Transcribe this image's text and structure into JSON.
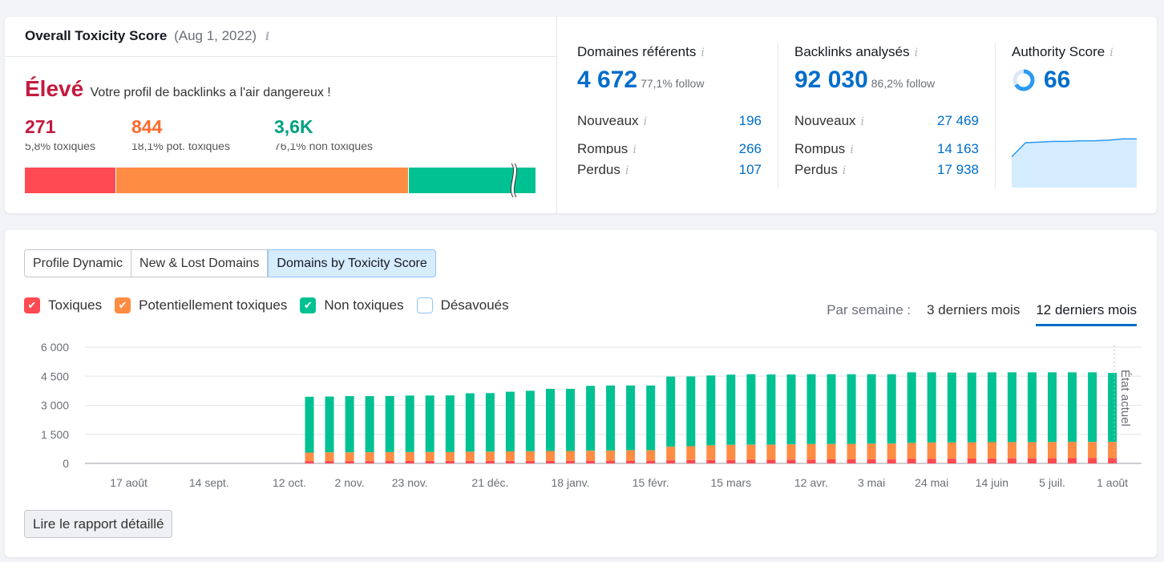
{
  "toxicity": {
    "title": "Overall Toxicity Score",
    "date": "(Aug 1, 2022)",
    "level": "Élevé",
    "level_desc": "Votre profil de backlinks a l'air dangereux !",
    "toxic_count": "271",
    "pot_toxic_count": "844",
    "non_toxic_count": "3,6K",
    "toxic_label": "5,8% toxiques",
    "pot_toxic_label": "18,1% pot. toxiques",
    "non_toxic_label": "76,1% non toxiques",
    "bar_share": {
      "toxic": 0.178,
      "pot_toxic": 0.572,
      "non_toxic": 0.25
    },
    "colors": {
      "toxic": "#ff4953",
      "pot_toxic": "#ff8c43",
      "non_toxic": "#00c192",
      "level": "#c41a3e"
    }
  },
  "ref_domains": {
    "title": "Domaines référents",
    "value": "4 672",
    "follow": "77,1% follow",
    "rows": [
      {
        "label": "Nouveaux",
        "value": "196"
      },
      {
        "label": "Rompus",
        "value": "266"
      },
      {
        "label": "Perdus",
        "value": "107"
      }
    ]
  },
  "backlinks": {
    "title": "Backlinks analysés",
    "value": "92 030",
    "follow": "86,2% follow",
    "rows": [
      {
        "label": "Nouveaux",
        "value": "27 469"
      },
      {
        "label": "Rompus",
        "value": "14 163"
      },
      {
        "label": "Perdus",
        "value": "17 938"
      }
    ]
  },
  "authority": {
    "title": "Authority Score",
    "value": "66",
    "gauge_fraction": 0.66,
    "sparkline": [
      48,
      70,
      71,
      72,
      72,
      73,
      73,
      74,
      76,
      76
    ]
  },
  "tabs": [
    "Profile Dynamic",
    "New & Lost Domains",
    "Domains by Toxicity Score"
  ],
  "active_tab": 2,
  "legend": [
    {
      "label": "Toxiques",
      "color": "#ff4953",
      "checked": true
    },
    {
      "label": "Potentiellement toxiques",
      "color": "#ff8c43",
      "checked": true
    },
    {
      "label": "Non toxiques",
      "color": "#00c192",
      "checked": true
    },
    {
      "label": "Désavoués",
      "color": "#8fc5f5",
      "checked": false
    }
  ],
  "range": {
    "label": "Par semaine :",
    "opt3": "3 derniers mois",
    "opt12": "12 derniers mois"
  },
  "current_state_label": "État actuel",
  "report_button": "Lire le rapport détaillé",
  "chart_data": {
    "type": "bar",
    "stacked": true,
    "title": "Domains by Toxicity Score",
    "ylim": [
      0,
      6000
    ],
    "yticks": [
      "6 000",
      "4 500",
      "3 000",
      "1 500",
      "0"
    ],
    "ytick_values": [
      6000,
      4500,
      3000,
      1500,
      0
    ],
    "xtick_labels": [
      "17 août",
      "14 sept.",
      "12 oct.",
      "2 nov.",
      "23 nov.",
      "21 déc.",
      "18 janv.",
      "15 févr.",
      "15 mars",
      "12 avr.",
      "3 mai",
      "24 mai",
      "14 juin",
      "5 juil.",
      "1 août"
    ],
    "xtick_index": [
      3,
      7,
      11,
      14,
      17,
      21,
      25,
      29,
      33,
      37,
      40,
      43,
      46,
      49,
      52
    ],
    "num_weeks": 53,
    "series": [
      {
        "name": "Toxiques",
        "color": "#ff4953",
        "values": [
          0,
          0,
          0,
          0,
          0,
          0,
          0,
          0,
          0,
          0,
          0,
          0,
          120,
          120,
          120,
          120,
          125,
          125,
          125,
          125,
          130,
          130,
          130,
          130,
          135,
          135,
          135,
          140,
          140,
          140,
          160,
          170,
          175,
          180,
          185,
          190,
          195,
          200,
          205,
          210,
          215,
          220,
          230,
          240,
          245,
          250,
          255,
          260,
          262,
          265,
          268,
          270,
          271
        ]
      },
      {
        "name": "Potentiellement toxiques",
        "color": "#ff8c43",
        "values": [
          0,
          0,
          0,
          0,
          0,
          0,
          0,
          0,
          0,
          0,
          0,
          0,
          440,
          450,
          450,
          455,
          460,
          460,
          465,
          465,
          475,
          480,
          490,
          500,
          510,
          510,
          520,
          530,
          540,
          540,
          700,
          720,
          760,
          780,
          780,
          780,
          790,
          800,
          800,
          800,
          805,
          805,
          830,
          840,
          840,
          840,
          840,
          840,
          840,
          844,
          844,
          844,
          844
        ]
      },
      {
        "name": "Non toxiques",
        "color": "#00c192",
        "values": [
          0,
          0,
          0,
          0,
          0,
          0,
          0,
          0,
          0,
          0,
          0,
          0,
          2880,
          2880,
          2900,
          2895,
          2895,
          2915,
          2915,
          2920,
          3015,
          3020,
          3080,
          3120,
          3205,
          3205,
          3345,
          3350,
          3340,
          3340,
          3620,
          3600,
          3605,
          3620,
          3635,
          3620,
          3605,
          3600,
          3595,
          3590,
          3580,
          3575,
          3640,
          3620,
          3605,
          3600,
          3605,
          3600,
          3598,
          3591,
          3588,
          3586,
          3557
        ]
      }
    ]
  }
}
